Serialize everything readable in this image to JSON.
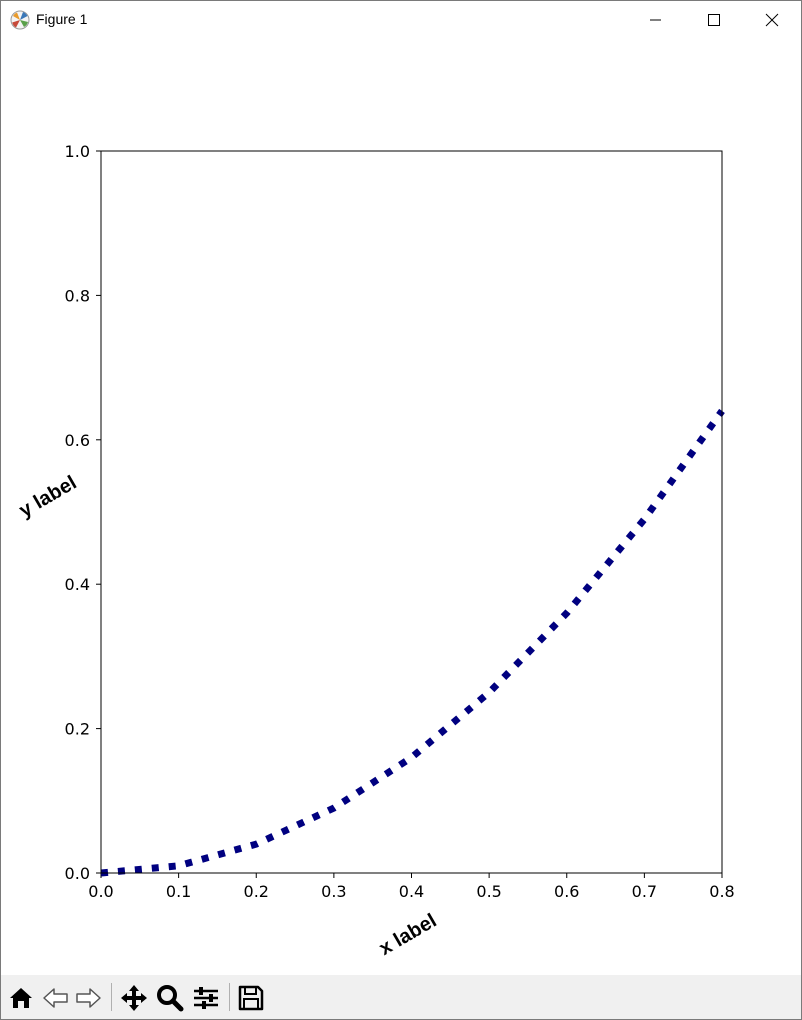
{
  "window": {
    "title": "Figure 1",
    "icon": "matplotlib-figure-icon",
    "controls": [
      "minimize-icon",
      "maximize-icon",
      "close-icon"
    ]
  },
  "toolbar": {
    "tools": [
      "home-icon",
      "back-arrow-icon",
      "forward-arrow-icon",
      "pan-icon",
      "zoom-icon",
      "configure-subplots-icon",
      "save-icon"
    ]
  },
  "chart_data": {
    "type": "line",
    "title": "",
    "xlabel": "x label",
    "ylabel": "y label",
    "xlim": [
      0.0,
      0.8
    ],
    "ylim": [
      0.0,
      1.0
    ],
    "xticks": [
      "0.0",
      "0.1",
      "0.2",
      "0.3",
      "0.4",
      "0.5",
      "0.6",
      "0.7",
      "0.8"
    ],
    "yticks": [
      "0.0",
      "0.2",
      "0.4",
      "0.6",
      "0.8",
      "1.0"
    ],
    "grid": false,
    "line_style": "dotted",
    "line_color": "#000080",
    "series": [
      {
        "x": [
          0.0,
          0.1,
          0.2,
          0.3,
          0.4,
          0.5,
          0.6,
          0.7,
          0.8
        ],
        "values": [
          0.0,
          0.01,
          0.04,
          0.09,
          0.16,
          0.25,
          0.36,
          0.49,
          0.64
        ]
      }
    ]
  }
}
